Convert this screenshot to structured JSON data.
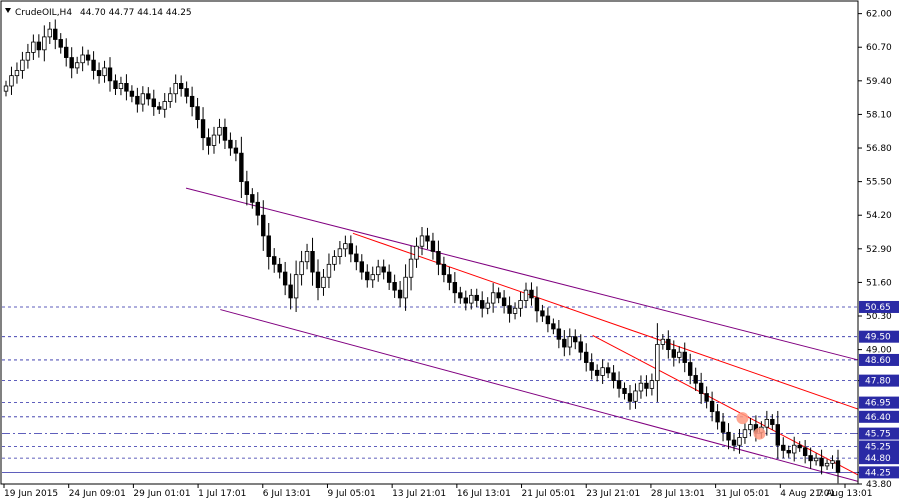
{
  "header": {
    "symbol": "CrudeOIL,H4",
    "ohlc": "44.70 44.77 44.14 44.25"
  },
  "chart_data": {
    "type": "candlestick",
    "title": "CrudeOIL,H4",
    "ylim": [
      43.8,
      62.45
    ],
    "y_ticks": [
      "62.00",
      "60.70",
      "59.40",
      "58.10",
      "56.80",
      "55.50",
      "54.20",
      "52.90",
      "51.60",
      "50.30",
      "49.00",
      "47.80",
      "44.25",
      "43.80"
    ],
    "x_ticks": [
      "19 Jun 2015",
      "24 Jun 09:01",
      "29 Jun 01:01",
      "1 Jul 17:01",
      "6 Jul 13:01",
      "9 Jul 05:01",
      "13 Jul 21:01",
      "16 Jul 13:01",
      "21 Jul 05:01",
      "23 Jul 21:01",
      "28 Jul 13:01",
      "31 Jul 05:01",
      "4 Aug 21:01",
      "7 Aug 13:01"
    ],
    "levels": [
      {
        "value": 50.65,
        "label": "50.65",
        "style": "dash"
      },
      {
        "value": 49.5,
        "label": "49.50",
        "style": "dash"
      },
      {
        "value": 48.6,
        "label": "48.60",
        "style": "dash"
      },
      {
        "value": 47.8,
        "label": "47.80",
        "style": "dash"
      },
      {
        "value": 46.95,
        "label": "46.95",
        "style": "dash"
      },
      {
        "value": 46.4,
        "label": "46.40",
        "style": "dash"
      },
      {
        "value": 45.75,
        "label": "45.75",
        "style": "dashdot"
      },
      {
        "value": 45.25,
        "label": "45.25",
        "style": "dash"
      },
      {
        "value": 44.8,
        "label": "44.80",
        "style": "dash"
      },
      {
        "value": 44.25,
        "label": "44.25",
        "style": "solid"
      }
    ],
    "trendlines": [
      {
        "color": "#800080",
        "from": {
          "bar": 0.215,
          "price": 55.25
        },
        "to": {
          "bar": 1.0,
          "price": 48.6
        }
      },
      {
        "color": "#800080",
        "from": {
          "bar": 0.255,
          "price": 50.55
        },
        "to": {
          "bar": 1.0,
          "price": 43.9
        }
      },
      {
        "color": "#ff0000",
        "from": {
          "bar": 0.41,
          "price": 53.5
        },
        "to": {
          "bar": 1.0,
          "price": 46.7
        }
      },
      {
        "color": "#ff0000",
        "from": {
          "bar": 0.69,
          "price": 49.55
        },
        "to": {
          "bar": 1.0,
          "price": 44.15
        }
      }
    ],
    "markers": [
      {
        "bar": 0.865,
        "price": 46.35,
        "color": "#ff9980"
      },
      {
        "bar": 0.885,
        "price": 45.75,
        "color": "#ff9980"
      }
    ],
    "candles_close": [
      59.2,
      59.6,
      59.8,
      60.2,
      60.5,
      60.9,
      60.6,
      61.1,
      61.4,
      61.0,
      60.7,
      60.3,
      59.9,
      60.1,
      60.4,
      60.2,
      59.8,
      59.6,
      59.9,
      59.4,
      59.1,
      59.3,
      59.0,
      58.8,
      58.5,
      58.9,
      58.7,
      58.4,
      58.3,
      58.6,
      58.9,
      59.3,
      59.1,
      58.8,
      58.4,
      57.9,
      57.2,
      56.9,
      57.3,
      57.6,
      57.1,
      56.8,
      56.6,
      55.5,
      55.0,
      54.7,
      54.2,
      53.4,
      52.6,
      52.3,
      52.0,
      51.5,
      51.0,
      51.9,
      52.4,
      52.8,
      52.0,
      51.4,
      51.8,
      52.3,
      52.6,
      52.9,
      53.1,
      52.7,
      52.4,
      52.0,
      51.7,
      51.9,
      52.2,
      52.0,
      51.6,
      51.3,
      51.0,
      51.8,
      52.5,
      53.0,
      53.4,
      53.2,
      52.8,
      52.3,
      51.9,
      51.6,
      51.2,
      51.0,
      50.8,
      51.1,
      50.9,
      50.6,
      50.8,
      51.2,
      51.0,
      50.7,
      50.4,
      50.6,
      50.9,
      51.3,
      51.0,
      50.5,
      50.3,
      50.0,
      49.8,
      49.4,
      49.1,
      49.5,
      49.3,
      48.9,
      48.5,
      48.2,
      48.0,
      48.3,
      48.1,
      47.8,
      47.5,
      47.3,
      47.0,
      47.4,
      47.7,
      47.5,
      47.8,
      49.2,
      49.4,
      49.0,
      48.7,
      48.9,
      48.5,
      48.0,
      47.7,
      47.3,
      47.0,
      46.6,
      46.2,
      45.8,
      45.5,
      45.3,
      45.6,
      45.9,
      46.1,
      45.8,
      46.0,
      46.3,
      46.1,
      45.3,
      45.1,
      45.0,
      45.3,
      45.2,
      44.9,
      44.7,
      44.8,
      44.5,
      44.6,
      44.7,
      44.25
    ]
  }
}
